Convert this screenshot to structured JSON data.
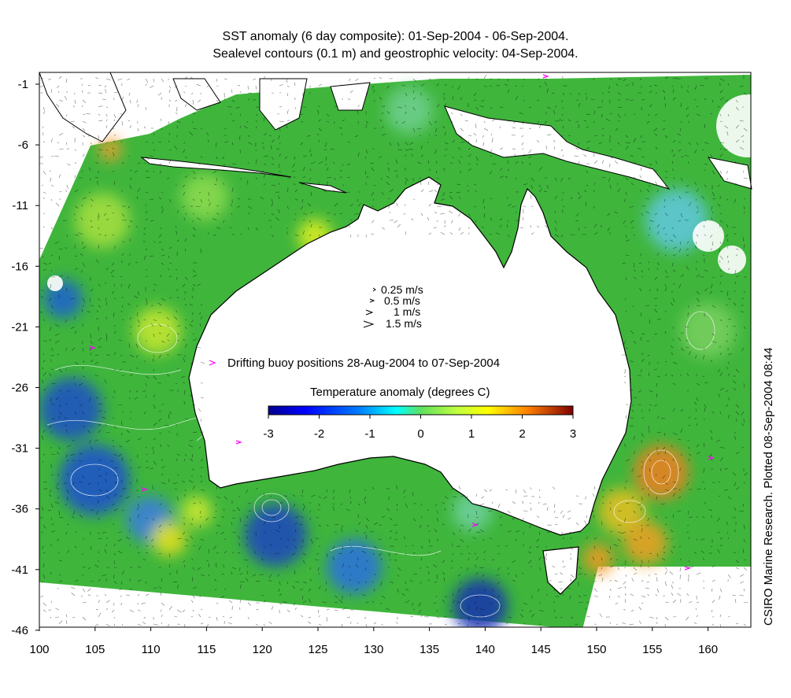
{
  "title_line1": "SST anomaly (6 day composite): 01-Sep-2004 - 06-Sep-2004.",
  "title_line2": "Sealevel contours (0.1 m) and geostrophic velocity: 04-Sep-2004.",
  "credit": "CSIRO Marine Research. Plotted 08-Sep-2004 08:44",
  "x_ticks": [
    "100",
    "105",
    "110",
    "115",
    "120",
    "125",
    "130",
    "135",
    "140",
    "145",
    "150",
    "155",
    "160"
  ],
  "y_ticks": [
    "-1",
    "-6",
    "-11",
    "-16",
    "-21",
    "-26",
    "-31",
    "-36",
    "-41",
    "-46"
  ],
  "velocity_key": [
    "0.25 m/s",
    "0.5 m/s",
    "1 m/s",
    "1.5 m/s"
  ],
  "buoy_legend": "Drifting buoy positions 28-Aug-2004 to 07-Sep-2004",
  "colorbar": {
    "title": "Temperature anomaly (degrees C)",
    "ticks": [
      "-3",
      "-2",
      "-1",
      "0",
      "1",
      "2",
      "3"
    ],
    "range": [
      -3,
      3
    ],
    "colors": [
      "#00008f",
      "#0000ff",
      "#0080ff",
      "#00ffff",
      "#80ff80",
      "#ffff00",
      "#ff8000",
      "#ff0000",
      "#800000"
    ]
  },
  "colors": {
    "ocean_base": "#3cb43c",
    "land": "#ffffff",
    "buoy": "#ff00ff",
    "contour": "#ffffff"
  }
}
